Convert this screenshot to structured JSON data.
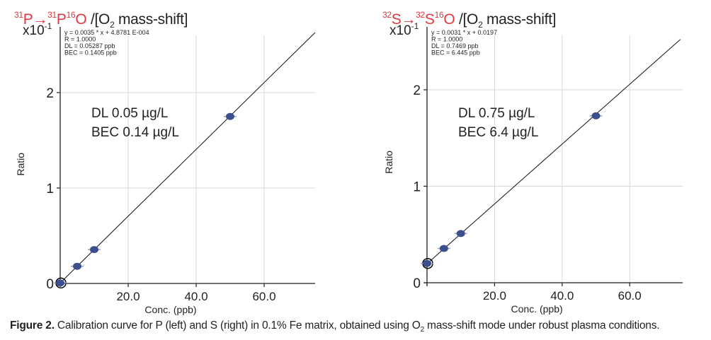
{
  "figure": {
    "caption_label": "Figure 2.",
    "caption_pre": " Calibration curve for P (left) and S (right) in 0.1% Fe matrix, obtained using O",
    "caption_sub": "2",
    "caption_post": " mass-shift mode under robust plasma conditions."
  },
  "panels": [
    {
      "title": {
        "iso1_mass": "31",
        "iso1_el": "P",
        "arrow": "→",
        "iso2_mass": "31",
        "iso2_el": "P",
        "iso3_mass": "16",
        "iso3_el": "O",
        "rest_pre": " /[O",
        "rest_sub": "2",
        "rest_post": " mass-shift]"
      }
    },
    {
      "title": {
        "iso1_mass": "32",
        "iso1_el": "S",
        "arrow": "→",
        "iso2_mass": "32",
        "iso2_el": "S",
        "iso3_mass": "16",
        "iso3_el": "O",
        "rest_pre": " /[O",
        "rest_sub": "2",
        "rest_post": " mass-shift]"
      }
    }
  ],
  "colors": {
    "title_red": "#e0373f",
    "marker": "#3b4f8f",
    "grid": "#d8d8d8",
    "axis": "#231f20",
    "fit_line": "#111111",
    "error_bar": "#9aa0b0"
  },
  "chart_data": [
    {
      "type": "scatter",
      "title": "31P→31P16O /[O2 mass-shift]",
      "xlabel": "Conc. (ppb)",
      "ylabel": "Ratio",
      "y_multiplier_label": "x10",
      "y_multiplier_exp": "-1",
      "xlim": [
        0,
        75
      ],
      "ylim": [
        0,
        2.55
      ],
      "x_ticks": [
        0,
        20,
        40,
        60
      ],
      "x_tick_labels": [
        "",
        "20.0",
        "40.0",
        "60.0"
      ],
      "y_ticks": [
        0,
        1,
        2
      ],
      "y_tick_labels": [
        "0",
        "1",
        "2"
      ],
      "grid": true,
      "fit": {
        "slope": 0.035,
        "intercept": 0.0048781,
        "note": "y values in x10^-1 units"
      },
      "points": {
        "x": [
          0,
          5,
          10,
          50
        ],
        "y": [
          0.005,
          0.18,
          0.355,
          1.75
        ]
      },
      "stats_box": [
        "y = 0.0035 * x  + 4.8781 E-004",
        "R =  1.0000",
        "DL = 0.05287 ppb",
        "BEC = 0.1405 ppb"
      ],
      "annotations": [
        "DL 0.05 µg/L",
        "BEC 0.14 µg/L"
      ]
    },
    {
      "type": "scatter",
      "title": "32S→32S16O /[O2 mass-shift]",
      "xlabel": "Conc. (ppb)",
      "ylabel": "Ratio",
      "y_multiplier_label": "x10",
      "y_multiplier_exp": "-1",
      "xlim": [
        0,
        75
      ],
      "ylim": [
        0,
        2.55
      ],
      "x_ticks": [
        0,
        20,
        40,
        60
      ],
      "x_tick_labels": [
        "",
        "20.0",
        "40.0",
        "60.0"
      ],
      "y_ticks": [
        0,
        1,
        2
      ],
      "y_tick_labels": [
        "0",
        "1",
        "2"
      ],
      "grid": true,
      "fit": {
        "slope": 0.031,
        "intercept": 0.197,
        "note": "y values in x10^-1 units"
      },
      "points": {
        "x": [
          0,
          5,
          10,
          50
        ],
        "y": [
          0.2,
          0.355,
          0.51,
          1.73
        ]
      },
      "stats_box": [
        "y = 0.0031 * x  + 0.0197",
        "R =  1.0000",
        "DL = 0.7469 ppb",
        "BEC = 6.445 ppb"
      ],
      "annotations": [
        "DL 0.75 µg/L",
        "BEC 6.4 µg/L"
      ]
    }
  ]
}
